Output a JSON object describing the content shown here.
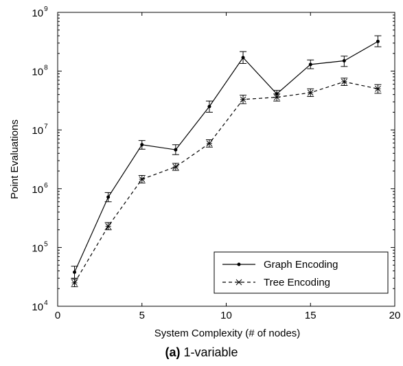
{
  "chart_data": {
    "type": "line",
    "title": "",
    "xlabel": "System Complexity (# of nodes)",
    "ylabel": "Point Evaluations",
    "xlim": [
      0,
      20
    ],
    "ylim": [
      10000,
      1000000000
    ],
    "yscale": "log",
    "xticks": [
      "0",
      "5",
      "10",
      "15",
      "20"
    ],
    "yticks": [
      {
        "base": "10",
        "exp": "4",
        "value": 10000
      },
      {
        "base": "10",
        "exp": "5",
        "value": 100000
      },
      {
        "base": "10",
        "exp": "6",
        "value": 1000000
      },
      {
        "base": "10",
        "exp": "7",
        "value": 10000000
      },
      {
        "base": "10",
        "exp": "8",
        "value": 100000000
      },
      {
        "base": "10",
        "exp": "9",
        "value": 1000000000
      }
    ],
    "grid": false,
    "legend_position": "bottom-right",
    "x": [
      1,
      3,
      5,
      7,
      9,
      11,
      13,
      15,
      17,
      19
    ],
    "series": [
      {
        "name": "Graph Encoding",
        "style": "solid",
        "marker": "dot",
        "values": [
          38000,
          720000,
          5600000,
          4600000,
          25000000,
          170000000,
          41000000,
          130000000,
          150000000,
          320000000
        ],
        "error_low": [
          30000,
          600000,
          4700000,
          3800000,
          20000000,
          135000000,
          36000000,
          110000000,
          120000000,
          260000000
        ],
        "error_high": [
          48000,
          860000,
          6600000,
          5600000,
          31000000,
          215000000,
          47000000,
          155000000,
          180000000,
          400000000
        ]
      },
      {
        "name": "Tree Encoding",
        "style": "dashed",
        "marker": "star",
        "values": [
          25000,
          230000,
          1450000,
          2350000,
          5900000,
          33000000,
          36000000,
          43000000,
          66000000,
          50000000
        ],
        "error_low": [
          21500,
          200000,
          1250000,
          2050000,
          5100000,
          28000000,
          31000000,
          37000000,
          57000000,
          42000000
        ],
        "error_high": [
          29000,
          265000,
          1680000,
          2700000,
          6800000,
          39000000,
          41000000,
          50000000,
          76000000,
          59000000
        ]
      }
    ],
    "color": "#000000"
  },
  "caption": {
    "label": "(a)",
    "text": " 1-variable"
  }
}
